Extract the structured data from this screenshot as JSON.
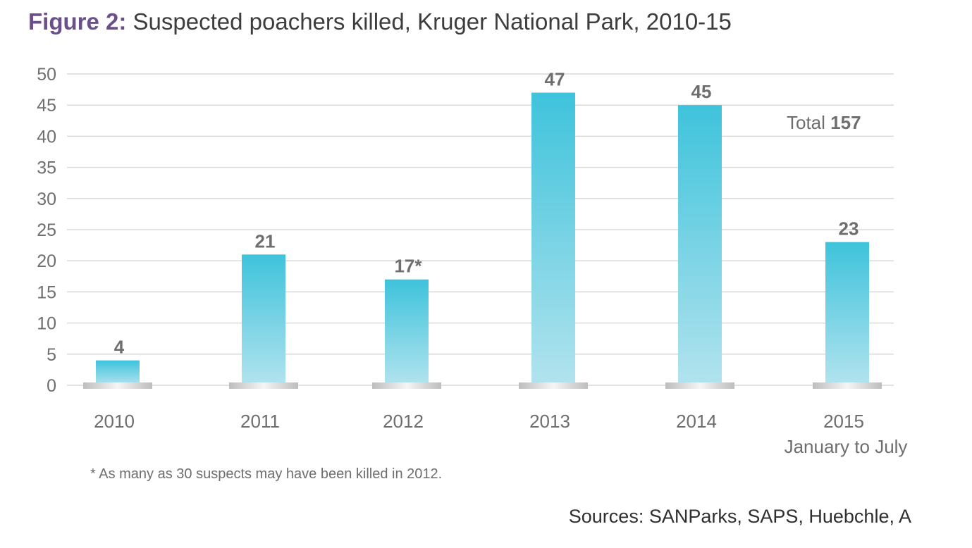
{
  "title": {
    "figure_label": "Figure 2:",
    "text": "Suspected poachers killed, Kruger National Park, 2010-15"
  },
  "chart_data": {
    "type": "bar",
    "categories": [
      "2010",
      "2011",
      "2012",
      "2013",
      "2014",
      "2015"
    ],
    "category_sublabels": [
      "",
      "",
      "",
      "",
      "",
      "January to July"
    ],
    "values": [
      4,
      21,
      17,
      47,
      45,
      23
    ],
    "data_labels": [
      "4",
      "21",
      "17*",
      "47",
      "45",
      "23"
    ],
    "ylim": [
      0,
      50
    ],
    "yticks": [
      0,
      5,
      10,
      15,
      20,
      25,
      30,
      35,
      40,
      45,
      50
    ],
    "grid": true,
    "annotation": {
      "label": "Total",
      "value": "157"
    },
    "colors": {
      "bar_top": "#3ec3db",
      "bar_bottom": "#b2e3ee",
      "grid": "#d9d9d9",
      "axis_text": "#6e6e6e",
      "data_label": "#6e6e6e"
    }
  },
  "footnote": "* As many as 30 suspects may have been killed in 2012.",
  "sources": "Sources: SANParks, SAPS, Huebchle, A"
}
